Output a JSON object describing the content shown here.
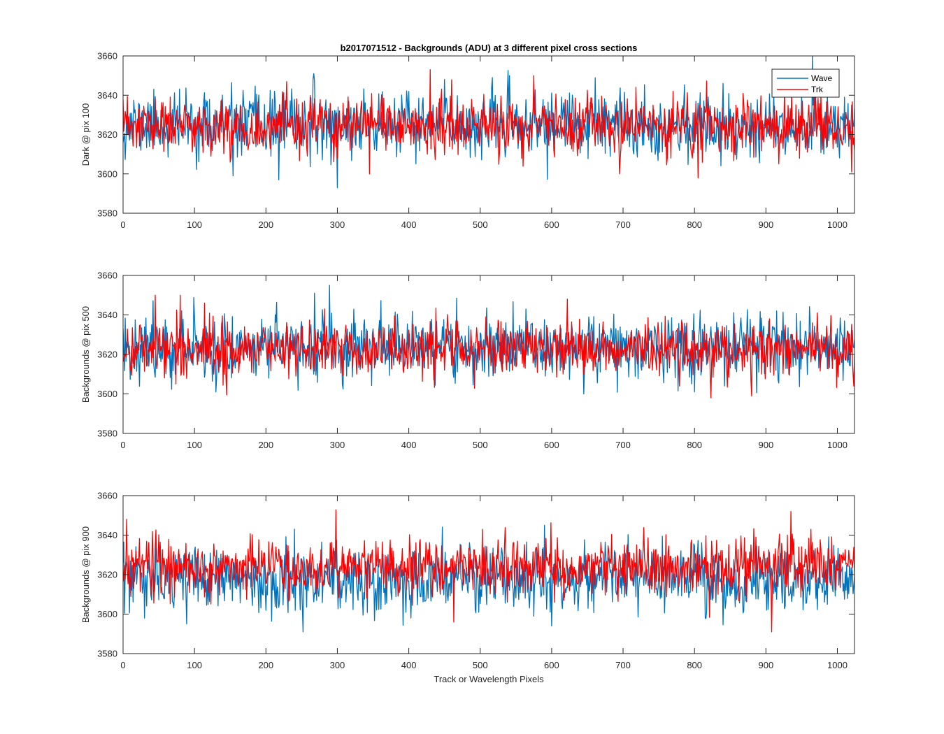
{
  "colors": {
    "Wave": "#0072BD",
    "Trk": "#FF0000",
    "axis": "#262626"
  },
  "chart_data": [
    {
      "type": "line",
      "title": "b2017071512 - Backgrounds (ADU) at 3 different pixel cross sections",
      "xlabel": "",
      "ylabel": "Dark @ pix 100",
      "xlim": [
        0,
        1024
      ],
      "ylim": [
        3580,
        3660
      ],
      "x_ticks": [
        0,
        100,
        200,
        300,
        400,
        500,
        600,
        700,
        800,
        900,
        1000
      ],
      "y_ticks": [
        3580,
        3600,
        3620,
        3640,
        3660
      ],
      "x_tick_labels": [
        "0",
        "100",
        "200",
        "300",
        "400",
        "500",
        "600",
        "700",
        "800",
        "900",
        "1000"
      ],
      "y_tick_labels": [
        "3580",
        "3600",
        "3620",
        "3640",
        "3660"
      ],
      "legend": {
        "placement": "top-right",
        "entries": [
          "Wave",
          "Trk"
        ]
      },
      "series": [
        {
          "name": "Wave",
          "mean": 3625,
          "spread": 8,
          "noise_seed": 11,
          "extremes": [
            [
              267,
              3651
            ],
            [
              300,
              3593
            ],
            [
              154,
              3599
            ],
            [
              218,
              3597
            ],
            [
              965,
              3660
            ],
            [
              450,
              3648
            ],
            [
              840,
              3646
            ]
          ]
        },
        {
          "name": "Trk",
          "mean": 3624,
          "spread": 7,
          "noise_seed": 23,
          "extremes": [
            [
              430,
              3653
            ],
            [
              575,
              3650
            ],
            [
              345,
              3600
            ],
            [
              805,
              3598
            ],
            [
              1020,
              3601
            ],
            [
              695,
              3600
            ]
          ]
        }
      ]
    },
    {
      "type": "line",
      "title": "",
      "xlabel": "",
      "ylabel": "Backgrounds @ pix 500",
      "xlim": [
        0,
        1024
      ],
      "ylim": [
        3580,
        3660
      ],
      "x_ticks": [
        0,
        100,
        200,
        300,
        400,
        500,
        600,
        700,
        800,
        900,
        1000
      ],
      "y_ticks": [
        3580,
        3600,
        3620,
        3640,
        3660
      ],
      "x_tick_labels": [
        "0",
        "100",
        "200",
        "300",
        "400",
        "500",
        "600",
        "700",
        "800",
        "900",
        "1000"
      ],
      "y_tick_labels": [
        "3580",
        "3600",
        "3620",
        "3640",
        "3660"
      ],
      "series": [
        {
          "name": "Wave",
          "mean": 3624,
          "spread": 8,
          "noise_seed": 37,
          "extremes": [
            [
              289,
              3655
            ],
            [
              268,
              3651
            ],
            [
              130,
              3601
            ],
            [
              645,
              3600
            ],
            [
              800,
              3601
            ],
            [
              1010,
              3637
            ]
          ]
        },
        {
          "name": "Trk",
          "mean": 3623,
          "spread": 7,
          "noise_seed": 41,
          "extremes": [
            [
              45,
              3650
            ],
            [
              80,
              3650
            ],
            [
              622,
              3648
            ],
            [
              823,
              3598
            ],
            [
              880,
              3599
            ],
            [
              1023,
              3604
            ]
          ]
        }
      ]
    },
    {
      "type": "line",
      "title": "",
      "xlabel": "Track or Wavelength Pixels",
      "ylabel": "Backgrounds @ pix 900",
      "xlim": [
        0,
        1024
      ],
      "ylim": [
        3580,
        3660
      ],
      "x_ticks": [
        0,
        100,
        200,
        300,
        400,
        500,
        600,
        700,
        800,
        900,
        1000
      ],
      "y_ticks": [
        3580,
        3600,
        3620,
        3640,
        3660
      ],
      "x_tick_labels": [
        "0",
        "100",
        "200",
        "300",
        "400",
        "500",
        "600",
        "700",
        "800",
        "900",
        "1000"
      ],
      "y_tick_labels": [
        "3580",
        "3600",
        "3620",
        "3640",
        "3660"
      ],
      "series": [
        {
          "name": "Wave",
          "mean": 3618,
          "spread": 8,
          "noise_seed": 53,
          "extremes": [
            [
              252,
              3591
            ],
            [
              240,
              3643
            ],
            [
              600,
              3594
            ],
            [
              30,
              3598
            ],
            [
              590,
              3645
            ]
          ]
        },
        {
          "name": "Trk",
          "mean": 3624,
          "spread": 7,
          "noise_seed": 67,
          "extremes": [
            [
              5,
              3648
            ],
            [
              935,
              3652
            ],
            [
              908,
              3591
            ],
            [
              463,
              3596
            ],
            [
              930,
              3640
            ]
          ]
        }
      ]
    }
  ]
}
